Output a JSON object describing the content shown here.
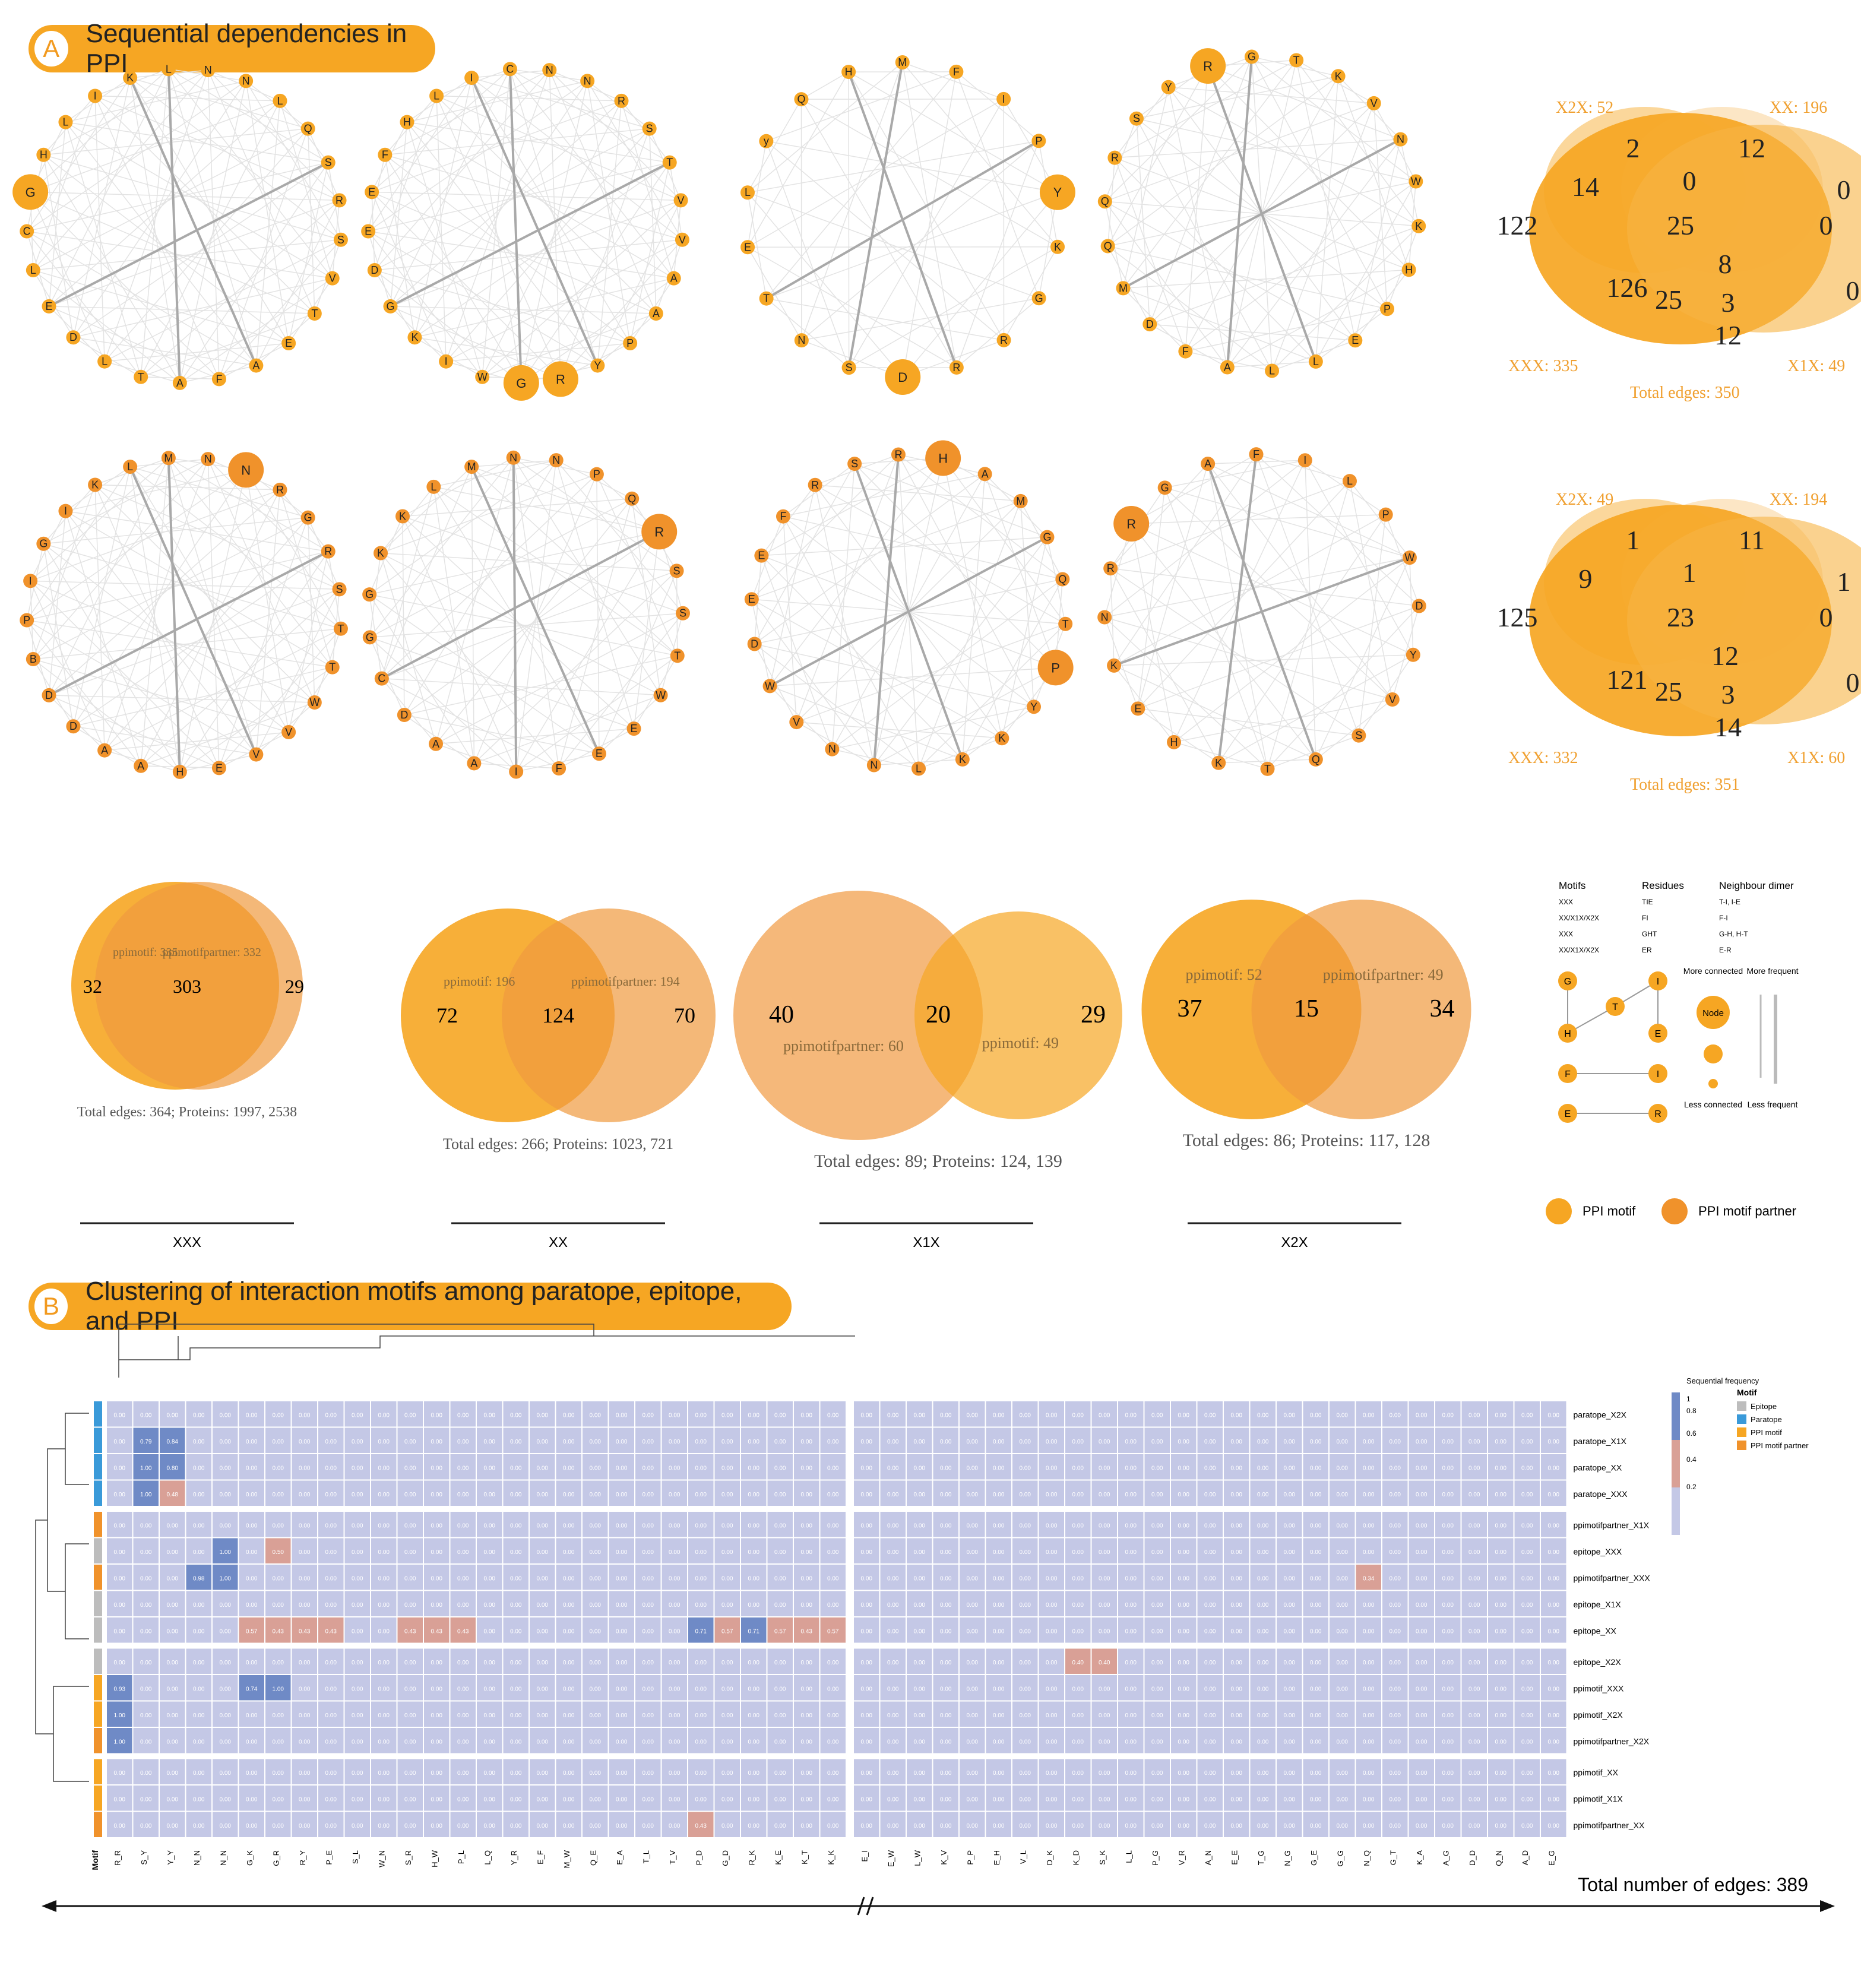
{
  "sectionA": {
    "letter": "A",
    "title": "Sequential dependencies in PPI"
  },
  "sectionB": {
    "letter": "B",
    "title": "Clustering of interaction motifs among paratope, epitope, and PPI"
  },
  "colors": {
    "ppi_motif": "#f6a623",
    "ppi_partner": "#f0922b",
    "epitope": "#bdbdbd",
    "paratope": "#3a9ad9",
    "cell_low": "#c4c8e6",
    "cell_mid": "#d9a096",
    "cell_high": "#6f8ac6"
  },
  "networks_row1": [
    {
      "labels": [
        "K",
        "L",
        "N",
        "N",
        "L",
        "Q",
        "S",
        "R",
        "S",
        "V",
        "T",
        "E",
        "A",
        "F",
        "A",
        "T",
        "L",
        "D",
        "E",
        "L",
        "C",
        "G",
        "H",
        "L",
        "I"
      ],
      "big": [
        21
      ]
    },
    {
      "labels": [
        "I",
        "C",
        "N",
        "N",
        "R",
        "S",
        "T",
        "V",
        "V",
        "A",
        "A",
        "P",
        "Y",
        "R",
        "G",
        "W",
        "I",
        "K",
        "G",
        "D",
        "E",
        "E",
        "F",
        "H",
        "L"
      ],
      "big": [
        14,
        13
      ]
    },
    {
      "labels": [
        "H",
        "M",
        "F",
        "I",
        "P",
        "Y",
        "K",
        "G",
        "R",
        "R",
        "D",
        "S",
        "N",
        "T",
        "E",
        "L",
        "y",
        "Q"
      ],
      "big": [
        5,
        10
      ]
    },
    {
      "labels": [
        "R",
        "G",
        "T",
        "K",
        "V",
        "N",
        "W",
        "K",
        "H",
        "P",
        "E",
        "L",
        "L",
        "A",
        "F",
        "D",
        "M",
        "Q",
        "Q",
        "R",
        "S",
        "Y"
      ],
      "big": [
        0
      ]
    }
  ],
  "networks_row2": [
    {
      "labels": [
        "L",
        "M",
        "N",
        "N",
        "R",
        "G",
        "R",
        "S",
        "T",
        "T",
        "W",
        "V",
        "V",
        "E",
        "H",
        "A",
        "A",
        "D",
        "D",
        "B",
        "P",
        "I",
        "G",
        "I",
        "K"
      ],
      "big": [
        3
      ]
    },
    {
      "labels": [
        "M",
        "N",
        "N",
        "P",
        "Q",
        "R",
        "S",
        "S",
        "T",
        "W",
        "E",
        "E",
        "F",
        "I",
        "A",
        "A",
        "D",
        "C",
        "G",
        "G",
        "K",
        "K",
        "L"
      ],
      "big": [
        5
      ]
    },
    {
      "labels": [
        "S",
        "R",
        "H",
        "A",
        "M",
        "G",
        "Q",
        "T",
        "P",
        "Y",
        "K",
        "K",
        "L",
        "N",
        "N",
        "V",
        "W",
        "D",
        "E",
        "E",
        "F",
        "R"
      ],
      "big": [
        2,
        8
      ]
    },
    {
      "labels": [
        "A",
        "F",
        "I",
        "L",
        "P",
        "W",
        "D",
        "Y",
        "V",
        "S",
        "Q",
        "T",
        "K",
        "H",
        "E",
        "K",
        "N",
        "R",
        "R",
        "G"
      ],
      "big": [
        18
      ]
    }
  ],
  "venn4": [
    {
      "x2x": "X2X: 52",
      "xx": "XX: 196",
      "xxx": "XXX: 335",
      "x1x": "X1X: 49",
      "total": "Total edges: 350",
      "counts": [
        "2",
        "12",
        "14",
        "0",
        "0",
        "122",
        "25",
        "0",
        "1",
        "8",
        "126",
        "25",
        "3",
        "0",
        "12"
      ]
    },
    {
      "x2x": "X2X: 49",
      "xx": "XX: 194",
      "xxx": "XXX: 332",
      "x1x": "X1X: 60",
      "total": "Total edges: 351",
      "counts": [
        "1",
        "11",
        "9",
        "1",
        "1",
        "125",
        "23",
        "0",
        "5",
        "12",
        "121",
        "25",
        "3",
        "0",
        "14"
      ]
    }
  ],
  "venn2": [
    {
      "left": "32",
      "mid": "303",
      "right": "29",
      "l1": "ppimotif: 335",
      "l2": "ppimotifpartner: 332",
      "total": "Total edges: 364; Proteins: 1997, 2538",
      "label": "XXX"
    },
    {
      "left": "72",
      "mid": "124",
      "right": "70",
      "l1": "ppimotif: 196",
      "l2": "ppimotifpartner: 194",
      "total": "Total edges: 266; Proteins: 1023, 721",
      "label": "XX"
    },
    {
      "left": "40",
      "mid": "20",
      "right": "29",
      "l1": "ppimotifpartner: 60",
      "l2": "ppimotif: 49",
      "total": "Total edges: 89; Proteins: 124, 139",
      "label": "X1X"
    },
    {
      "left": "37",
      "mid": "15",
      "right": "34",
      "l1": "ppimotif: 52",
      "l2": "ppimotifpartner: 49",
      "total": "Total edges: 86; Proteins: 117, 128",
      "label": "X2X"
    }
  ],
  "legend": {
    "col_motifs": "Motifs",
    "col_residues": "Residues",
    "col_dimer": "Neighbour dimer",
    "rows": [
      [
        "XXX",
        "TIE",
        "T-I, I-E"
      ],
      [
        "XX/X1X/X2X",
        "FI",
        "F-I"
      ],
      [
        "XXX",
        "GHT",
        "G-H, H-T"
      ],
      [
        "XX/X1X/X2X",
        "ER",
        "E-R"
      ]
    ],
    "more_connected": "More connected",
    "node": "Node",
    "less_connected": "Less connected",
    "more_frequent": "More frequent",
    "less_frequent": "Less frequent",
    "ppi_motif": "PPI motif",
    "ppi_partner": "PPI motif partner",
    "nodes": [
      "G",
      "T",
      "I",
      "H",
      "E",
      "F",
      "I",
      "E",
      "R"
    ]
  },
  "heatmap": {
    "rows": [
      "paratope_X2X",
      "paratope_X1X",
      "paratope_XX",
      "paratope_XXX",
      "ppimotifpartner_X1X",
      "epitope_XXX",
      "ppimotifpartner_XXX",
      "epitope_X1X",
      "epitope_XX",
      "epitope_X2X",
      "ppimotif_XXX",
      "ppimotif_X2X",
      "ppimotifpartner_X2X",
      "ppimotif_XX",
      "ppimotif_X1X",
      "ppimotifpartner_XX"
    ],
    "row_types": [
      "paratope",
      "paratope",
      "paratope",
      "paratope",
      "partner",
      "epitope",
      "partner",
      "epitope",
      "epitope",
      "epitope",
      "motif",
      "motif",
      "partner",
      "motif",
      "motif",
      "partner"
    ],
    "cols_left": [
      "R_R",
      "S_Y",
      "Y_Y",
      "N_N",
      "N_N",
      "G_K",
      "G_R",
      "R_Y",
      "P_E",
      "S_L",
      "W_N",
      "S_R",
      "H_W",
      "P_L",
      "L_Q",
      "Y_R",
      "E_F",
      "M_W",
      "Q_E",
      "E_A",
      "T_L",
      "T_V",
      "P_D",
      "G_D",
      "R_K",
      "K_E",
      "K_T",
      "K_K"
    ],
    "cols_right": [
      "E_I",
      "E_W",
      "L_W",
      "K_V",
      "P_P",
      "E_H",
      "V_L",
      "D_K",
      "K_D",
      "S_K",
      "L_L",
      "P_G",
      "V_R",
      "A_N",
      "E_E",
      "T_G",
      "N_G",
      "G_E",
      "G_G",
      "N_Q",
      "G_T",
      "K_A",
      "A_G",
      "D_D",
      "Q_N",
      "A_D",
      "E_G"
    ],
    "highlights": [
      [
        1,
        1,
        "0.79"
      ],
      [
        1,
        2,
        "0.84"
      ],
      [
        2,
        1,
        "1.00"
      ],
      [
        2,
        2,
        "0.80"
      ],
      [
        3,
        1,
        "1.00"
      ],
      [
        3,
        2,
        "0.48"
      ],
      [
        5,
        4,
        "1.00"
      ],
      [
        5,
        6,
        "0.50"
      ],
      [
        6,
        3,
        "0.98"
      ],
      [
        6,
        4,
        "1.00"
      ],
      [
        8,
        5,
        "0.57"
      ],
      [
        8,
        6,
        "0.43"
      ],
      [
        8,
        7,
        "0.43"
      ],
      [
        8,
        8,
        "0.43"
      ],
      [
        8,
        11,
        "0.43"
      ],
      [
        8,
        12,
        "0.43"
      ],
      [
        8,
        13,
        "0.43"
      ],
      [
        8,
        22,
        "0.71"
      ],
      [
        8,
        23,
        "0.57"
      ],
      [
        8,
        24,
        "0.71"
      ],
      [
        8,
        25,
        "0.57"
      ],
      [
        8,
        26,
        "0.43"
      ],
      [
        8,
        27,
        "0.57"
      ],
      [
        10,
        0,
        "0.93"
      ],
      [
        10,
        5,
        "0.74"
      ],
      [
        10,
        6,
        "1.00"
      ],
      [
        11,
        0,
        "1.00"
      ],
      [
        12,
        0,
        "1.00"
      ],
      [
        15,
        22,
        "0.43"
      ],
      [
        9,
        36,
        "0.40"
      ],
      [
        9,
        37,
        "0.40"
      ],
      [
        6,
        47,
        "0.34"
      ]
    ],
    "cb_title": "Sequential frequency",
    "cb_ticks": [
      "1",
      "0.8",
      "0.6",
      "0.4",
      "0.2"
    ],
    "motif_legend_title": "Motif",
    "motif_legend": [
      "Epitope",
      "Paratope",
      "PPI motif",
      "PPI motif partner"
    ],
    "motif_col_label": "Motif",
    "axis_label": "Total number of edges: 389"
  }
}
